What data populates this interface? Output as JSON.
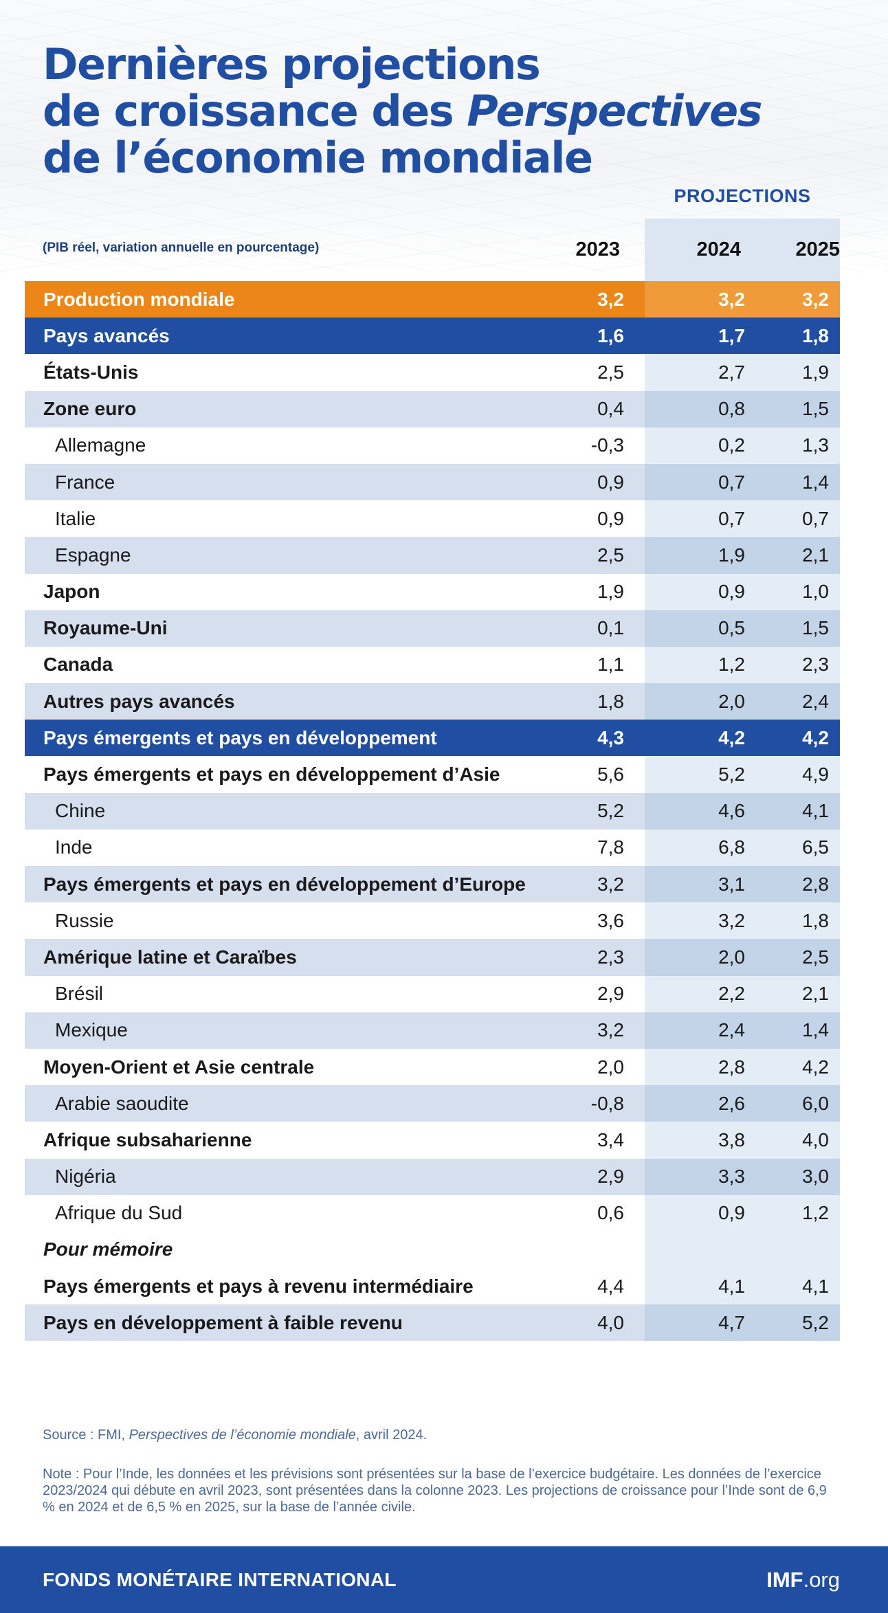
{
  "title": {
    "line1": "Dernières projections",
    "line2_prefix": "de croissance des ",
    "line2_italic": "Perspectives",
    "line3": "de l’économie mondiale"
  },
  "projections_label": "PROJECTIONS",
  "unit_label": "(PIB réel, variation annuelle en pourcentage)",
  "years": [
    "2023",
    "2024",
    "2025"
  ],
  "chart_data": {
    "type": "table",
    "columns": [
      "2023",
      "2024",
      "2025"
    ],
    "rows": [
      {
        "label": "Production mondiale",
        "values": [
          "3,2",
          "3,2",
          "3,2"
        ],
        "style": "world"
      },
      {
        "label": "Pays avancés",
        "values": [
          "1,6",
          "1,7",
          "1,8"
        ],
        "style": "group"
      },
      {
        "label": "États-Unis",
        "values": [
          "2,5",
          "2,7",
          "1,9"
        ],
        "style": "bold"
      },
      {
        "label": "Zone euro",
        "values": [
          "0,4",
          "0,8",
          "1,5"
        ],
        "style": "bold"
      },
      {
        "label": "Allemagne",
        "values": [
          "-0,3",
          "0,2",
          "1,3"
        ],
        "style": "indent"
      },
      {
        "label": "France",
        "values": [
          "0,9",
          "0,7",
          "1,4"
        ],
        "style": "indent"
      },
      {
        "label": "Italie",
        "values": [
          "0,9",
          "0,7",
          "0,7"
        ],
        "style": "indent"
      },
      {
        "label": "Espagne",
        "values": [
          "2,5",
          "1,9",
          "2,1"
        ],
        "style": "indent"
      },
      {
        "label": "Japon",
        "values": [
          "1,9",
          "0,9",
          "1,0"
        ],
        "style": "bold"
      },
      {
        "label": "Royaume-Uni",
        "values": [
          "0,1",
          "0,5",
          "1,5"
        ],
        "style": "bold"
      },
      {
        "label": "Canada",
        "values": [
          "1,1",
          "1,2",
          "2,3"
        ],
        "style": "bold"
      },
      {
        "label": "Autres pays avancés",
        "values": [
          "1,8",
          "2,0",
          "2,4"
        ],
        "style": "bold"
      },
      {
        "label": "Pays émergents et pays en développement",
        "values": [
          "4,3",
          "4,2",
          "4,2"
        ],
        "style": "group"
      },
      {
        "label": "Pays émergents et pays en développement d’Asie",
        "values": [
          "5,6",
          "5,2",
          "4,9"
        ],
        "style": "bold"
      },
      {
        "label": "Chine",
        "values": [
          "5,2",
          "4,6",
          "4,1"
        ],
        "style": "indent"
      },
      {
        "label": "Inde",
        "values": [
          "7,8",
          "6,8",
          "6,5"
        ],
        "style": "indent"
      },
      {
        "label": "Pays émergents et pays en développement d’Europe",
        "values": [
          "3,2",
          "3,1",
          "2,8"
        ],
        "style": "bold"
      },
      {
        "label": "Russie",
        "values": [
          "3,6",
          "3,2",
          "1,8"
        ],
        "style": "indent"
      },
      {
        "label": "Amérique latine et Caraïbes",
        "values": [
          "2,3",
          "2,0",
          "2,5"
        ],
        "style": "bold"
      },
      {
        "label": "Brésil",
        "values": [
          "2,9",
          "2,2",
          "2,1"
        ],
        "style": "indent"
      },
      {
        "label": "Mexique",
        "values": [
          "3,2",
          "2,4",
          "1,4"
        ],
        "style": "indent"
      },
      {
        "label": "Moyen-Orient et Asie centrale",
        "values": [
          "2,0",
          "2,8",
          "4,2"
        ],
        "style": "bold"
      },
      {
        "label": "Arabie saoudite",
        "values": [
          "-0,8",
          "2,6",
          "6,0"
        ],
        "style": "indent"
      },
      {
        "label": "Afrique subsaharienne",
        "values": [
          "3,4",
          "3,8",
          "4,0"
        ],
        "style": "bold"
      },
      {
        "label": "Nigéria",
        "values": [
          "2,9",
          "3,3",
          "3,0"
        ],
        "style": "indent"
      },
      {
        "label": "Afrique du Sud",
        "values": [
          "0,6",
          "0,9",
          "1,2"
        ],
        "style": "indent"
      },
      {
        "label": "Pour mémoire",
        "values": [
          "",
          "",
          ""
        ],
        "style": "memo"
      },
      {
        "label": "Pays émergents et pays à revenu intermédiaire",
        "values": [
          "4,4",
          "4,1",
          "4,1"
        ],
        "style": "bold"
      },
      {
        "label": "Pays en développement à faible revenu",
        "values": [
          "4,0",
          "4,7",
          "5,2"
        ],
        "style": "bold"
      }
    ]
  },
  "source": {
    "prefix": "Source : FMI, ",
    "italic": "Perspectives de l’économie mondiale",
    "suffix": ", avril 2024."
  },
  "note": "Note : Pour l’Inde, les données et les prévisions sont présentées sur la base de l’exercice budgétaire. Les données de l’exercice 2023/2024 qui débute en avril 2023, sont présentées dans la colonne 2023. Les projections de croissance pour l’Inde sont de 6,9 % en 2024 et de 6,5 % en 2025, sur la base de l’année civile.",
  "footer": {
    "org": "FONDS MONÉTAIRE INTERNATIONAL",
    "site_bold": "IMF",
    "site_rest": ".org"
  },
  "colors": {
    "brand_blue": "#1f4ea3",
    "world_orange": "#ec8618",
    "row_shade": "#d5dfed",
    "projection_band": "#dce6f3"
  }
}
